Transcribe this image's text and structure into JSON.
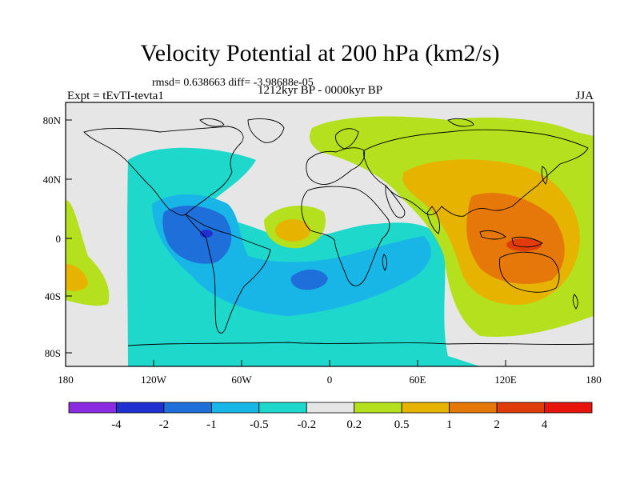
{
  "title": "Velocity Potential at 200 hPa (km2/s)",
  "stats": "rmsd= 0.638663  diff= -3.98688e-05",
  "left_label": "Expt = tEvTI-tevta1",
  "center_label": "1212kyr BP - 0000kyr BP",
  "right_label": "JJA",
  "x_ticks": [
    "180",
    "120W",
    "60W",
    "0",
    "60E",
    "120E",
    "180"
  ],
  "y_ticks": [
    "80N",
    "40N",
    "0",
    "40S",
    "80S"
  ],
  "colorbar": {
    "labels": [
      "-4",
      "-2",
      "-1",
      "-0.5",
      "-0.2",
      "0.2",
      "0.5",
      "1",
      "2",
      "4"
    ],
    "colors": [
      "#8a2be2",
      "#2030d0",
      "#1e6fd9",
      "#18b6e6",
      "#1ed8cc",
      "#e6e6e6",
      "#b4e01e",
      "#e6b400",
      "#e6780a",
      "#e03c0a",
      "#e6140a"
    ]
  },
  "fills": {
    "neutral": "#e6e6e6",
    "weak_neg": "#1ed8cc",
    "mod_neg": "#18b6e6",
    "strong_neg": "#1e6fd9",
    "very_neg": "#2030d0",
    "weak_pos": "#b4e01e",
    "mod_pos": "#e6b400",
    "strong_pos": "#e6780a",
    "very_pos": "#e03c0a"
  }
}
